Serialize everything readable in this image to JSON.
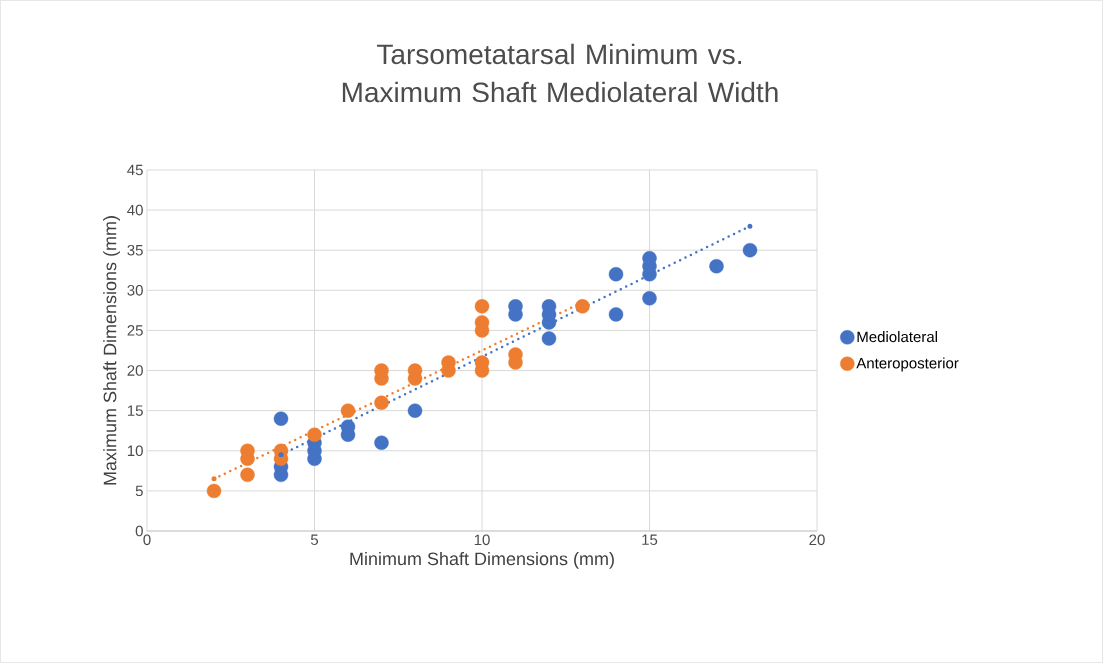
{
  "chart_data": {
    "type": "scatter",
    "title": "Tarsometatarsal Minimum vs. Maximum Shaft Mediolateral Width",
    "xlabel": "Minimum Shaft Dimensions (mm)",
    "ylabel": "Maximum Shaft Dimensions (mm)",
    "xlim": [
      0,
      20
    ],
    "xticks": [
      0,
      5,
      10,
      15,
      20
    ],
    "ylim": [
      0,
      45
    ],
    "yticks": [
      0,
      5,
      10,
      15,
      20,
      25,
      30,
      35,
      40,
      45
    ],
    "grid": true,
    "legend": "right",
    "marker": "circle",
    "series": [
      {
        "name": "Mediolateral",
        "color": "#4472c4",
        "x": [
          4,
          4,
          4,
          5,
          5,
          5,
          6,
          6,
          7,
          8,
          11,
          11,
          12,
          12,
          12,
          12,
          14,
          14,
          15,
          15,
          15,
          15,
          17,
          18
        ],
        "values": [
          14,
          7,
          8,
          9,
          10,
          11,
          12,
          13,
          11,
          15,
          27,
          28,
          24,
          26,
          27,
          28,
          27,
          32,
          29,
          32,
          33,
          34,
          33,
          35
        ]
      },
      {
        "name": "Anteroposterior",
        "color": "#ed7d31",
        "x": [
          2,
          3,
          3,
          3,
          4,
          4,
          5,
          6,
          7,
          7,
          7,
          8,
          8,
          9,
          9,
          10,
          10,
          10,
          10,
          10,
          11,
          11,
          13
        ],
        "values": [
          5,
          7,
          9,
          10,
          9,
          10,
          12,
          15,
          16,
          19,
          20,
          19,
          20,
          20,
          21,
          20,
          21,
          25,
          26,
          28,
          21,
          22,
          28
        ]
      },
      {
        "type": "line",
        "line_style": "dotted",
        "color": "#4472c4",
        "x": [
          4,
          18
        ],
        "values": [
          9.5,
          38
        ]
      },
      {
        "type": "line",
        "line_style": "dotted",
        "color": "#ed7d31",
        "x": [
          2,
          13
        ],
        "values": [
          6.5,
          28.5
        ]
      }
    ]
  }
}
